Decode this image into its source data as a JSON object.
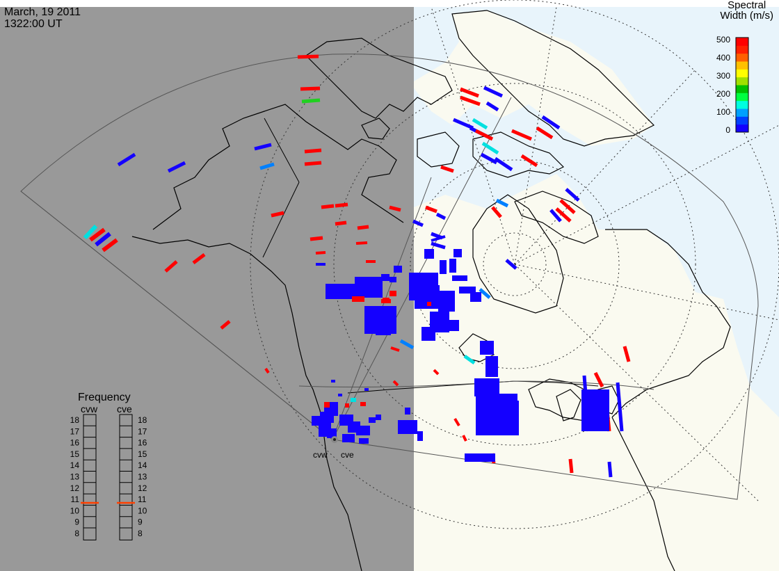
{
  "header": {
    "date": "March, 19 2011",
    "time": "1322:00 UT"
  },
  "colorbar": {
    "title_line1": "Spectral",
    "title_line2": "Width (m/s)",
    "ticks": [
      "500",
      "400",
      "300",
      "200",
      "100",
      "0"
    ],
    "scale_colors": [
      "#1400ff",
      "#0040ff",
      "#00a0ff",
      "#00ffe0",
      "#00ff40",
      "#00c000",
      "#a0e000",
      "#ffff00",
      "#ffc000",
      "#ff6000",
      "#ff2000",
      "#ff0000"
    ]
  },
  "frequency_panel": {
    "title": "Frequency",
    "radars": [
      "cvw",
      "cve"
    ],
    "ticks": [
      "18",
      "17",
      "16",
      "15",
      "14",
      "13",
      "12",
      "11",
      "10",
      "9",
      "8"
    ],
    "min_mhz": 8,
    "max_mhz": 18,
    "values_mhz": [
      10.7,
      10.7
    ],
    "marker_color": "#ff4000"
  },
  "sites": {
    "west": "cvw",
    "east": "cve"
  },
  "colors": {
    "night": "#999999",
    "day_land": "#fafaf0",
    "day_ocean": "#e8f4fb",
    "low_width": "#1400ff",
    "high_width": "#ff0000"
  }
}
